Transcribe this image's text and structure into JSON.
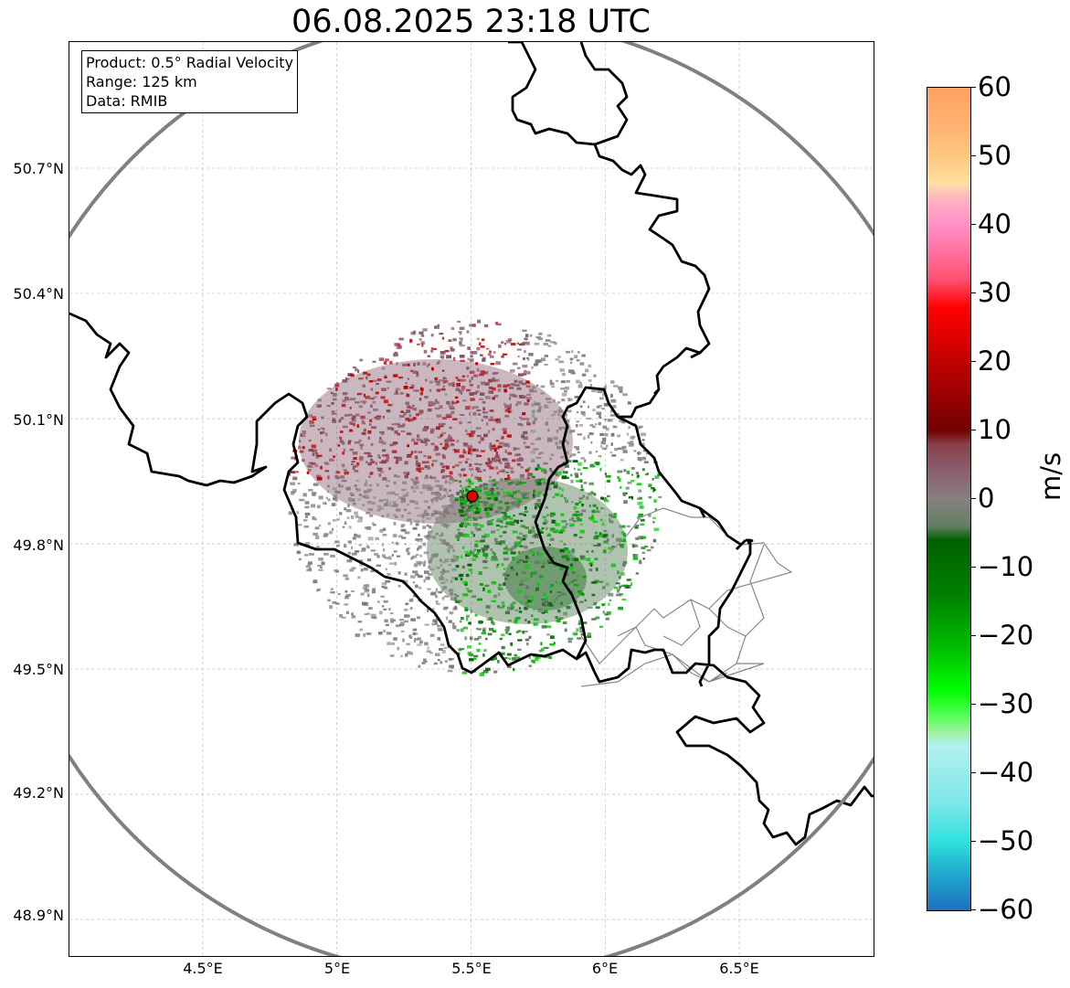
{
  "title": "06.08.2025 23:18 UTC",
  "info_box": {
    "product": "Product: 0.5° Radial Velocity",
    "range": "Range: 125 km",
    "data": "Data: RMIB"
  },
  "map": {
    "lat_ticks": [
      "50.7°N",
      "50.4°N",
      "50.1°N",
      "49.8°N",
      "49.5°N",
      "49.2°N",
      "48.9°N"
    ],
    "lon_ticks": [
      "4.5°E",
      "5°E",
      "5.5°E",
      "6°E",
      "6.5°E"
    ],
    "radar_site": {
      "lon": 5.505,
      "lat": 49.914
    },
    "range_ring_km": 125,
    "colors": {
      "border": "#000000",
      "range_ring": "#808080",
      "grid": "#b0b0b0",
      "admin_lines": "#888888",
      "radar_marker": "#e00000"
    }
  },
  "colorbar": {
    "unit": "m/s",
    "min": -60,
    "max": 60,
    "ticks": [
      "60",
      "50",
      "40",
      "30",
      "20",
      "10",
      "0",
      "−10",
      "−20",
      "−30",
      "−40",
      "−50",
      "−60"
    ],
    "stops": [
      {
        "v": 60,
        "c": "#ffa060"
      },
      {
        "v": 55,
        "c": "#ffb070"
      },
      {
        "v": 50,
        "c": "#ffc880"
      },
      {
        "v": 46,
        "c": "#ffe0a0"
      },
      {
        "v": 44,
        "c": "#ffb6c1"
      },
      {
        "v": 40,
        "c": "#ff90c8"
      },
      {
        "v": 36,
        "c": "#ff70a0"
      },
      {
        "v": 32,
        "c": "#ff5070"
      },
      {
        "v": 28,
        "c": "#ff0000"
      },
      {
        "v": 20,
        "c": "#c00000"
      },
      {
        "v": 14,
        "c": "#900000"
      },
      {
        "v": 10,
        "c": "#700000"
      },
      {
        "v": 8,
        "c": "#8a4048"
      },
      {
        "v": 4,
        "c": "#8a6070"
      },
      {
        "v": 0,
        "c": "#888080"
      },
      {
        "v": -4,
        "c": "#608060"
      },
      {
        "v": -6,
        "c": "#006000"
      },
      {
        "v": -14,
        "c": "#008000"
      },
      {
        "v": -22,
        "c": "#00c000"
      },
      {
        "v": -28,
        "c": "#00ff00"
      },
      {
        "v": -32,
        "c": "#60ff60"
      },
      {
        "v": -34,
        "c": "#a0f0a0"
      },
      {
        "v": -36,
        "c": "#b0f0f0"
      },
      {
        "v": -44,
        "c": "#80e8e8"
      },
      {
        "v": -50,
        "c": "#30e0e0"
      },
      {
        "v": -54,
        "c": "#20b0d0"
      },
      {
        "v": -60,
        "c": "#2070c0"
      }
    ]
  }
}
